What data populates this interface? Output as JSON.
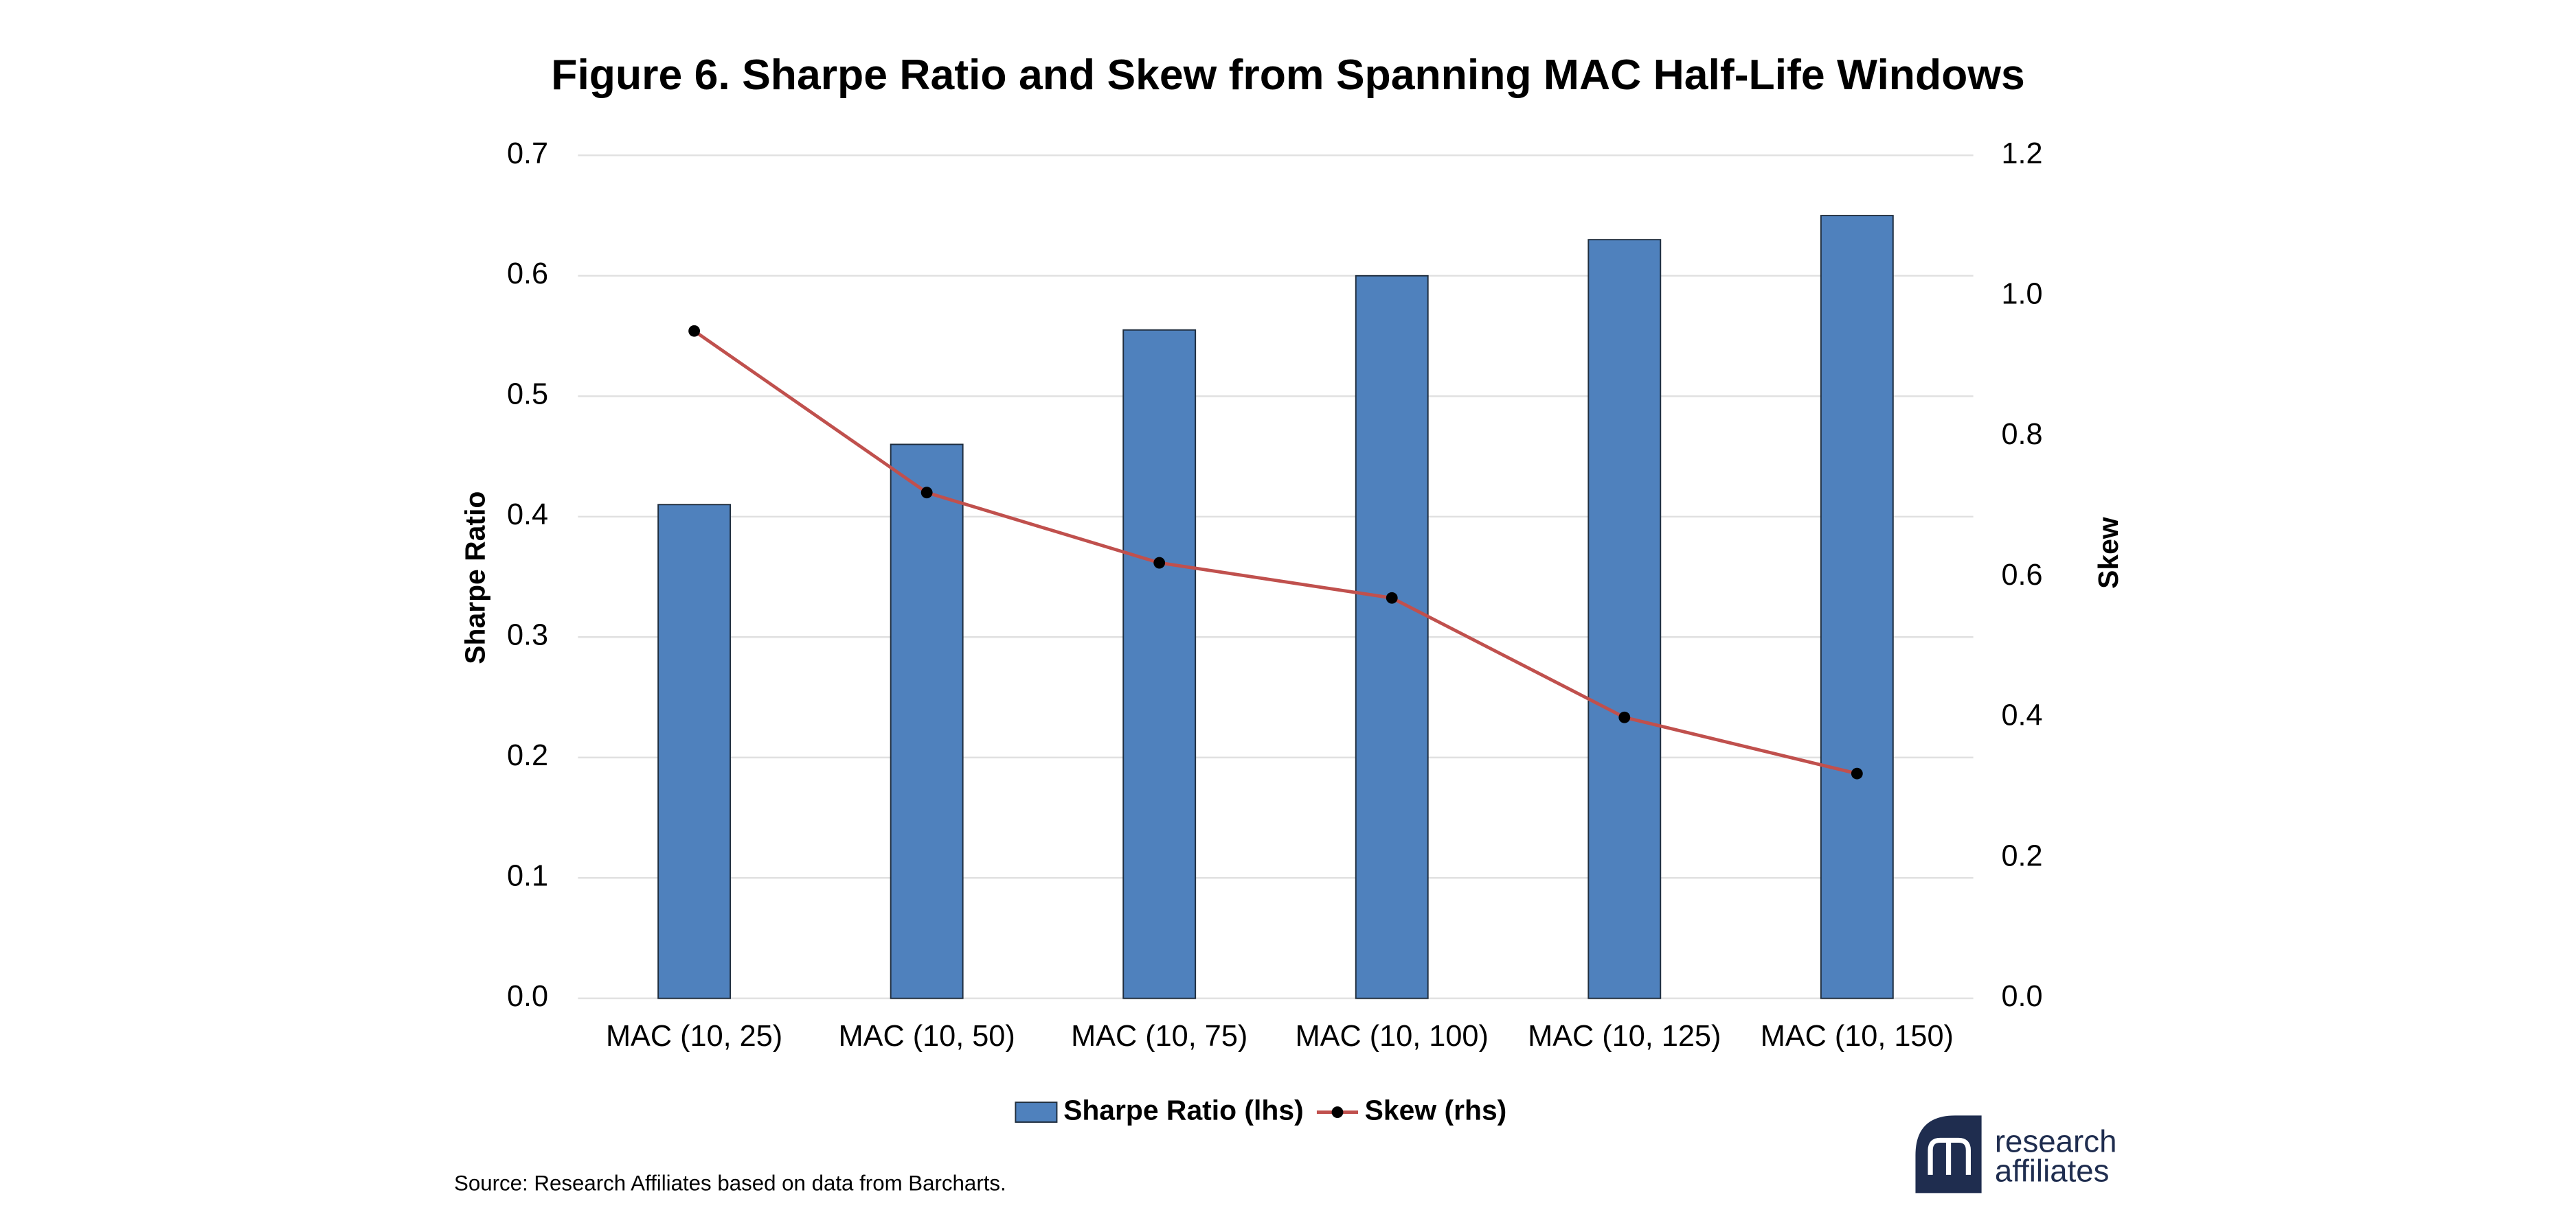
{
  "chart_data": {
    "type": "bar_line",
    "title": "Figure 6. Sharpe Ratio and Skew from Spanning MAC Half-Life Windows",
    "categories": [
      "MAC (10, 25)",
      "MAC (10, 50)",
      "MAC (10, 75)",
      "MAC (10, 100)",
      "MAC (10, 125)",
      "MAC (10, 150)"
    ],
    "series": [
      {
        "name": "Sharpe Ratio (lhs)",
        "type": "bar",
        "color": "#4f81bd",
        "values": [
          0.41,
          0.46,
          0.555,
          0.6,
          0.63,
          0.65
        ]
      },
      {
        "name": "Skew (rhs)",
        "type": "line",
        "axis": "y2",
        "color": "#c0504d",
        "marker_color": "#000000",
        "values": [
          0.95,
          0.72,
          0.62,
          0.57,
          0.4,
          0.32
        ]
      }
    ],
    "y_label": "Sharpe Ratio",
    "y2_label": "Skew",
    "ylim": [
      0,
      0.7
    ],
    "yticks": [
      {
        "value": 0,
        "label": "0.0"
      },
      0.1,
      0.2,
      0.3,
      0.4,
      0.5,
      0.6,
      0.7
    ],
    "y2lim": [
      0,
      1.2
    ],
    "y2ticks": [
      {
        "value": 0,
        "label": "0.0"
      },
      0.2,
      0.4,
      0.6,
      0.8,
      {
        "value": 1,
        "label": "1.0"
      },
      1.2
    ],
    "grid": true,
    "legend": "bottom",
    "source": "Source: Research Affiliates based on data from Barcharts.",
    "logo": [
      "research",
      "affiliates"
    ]
  }
}
